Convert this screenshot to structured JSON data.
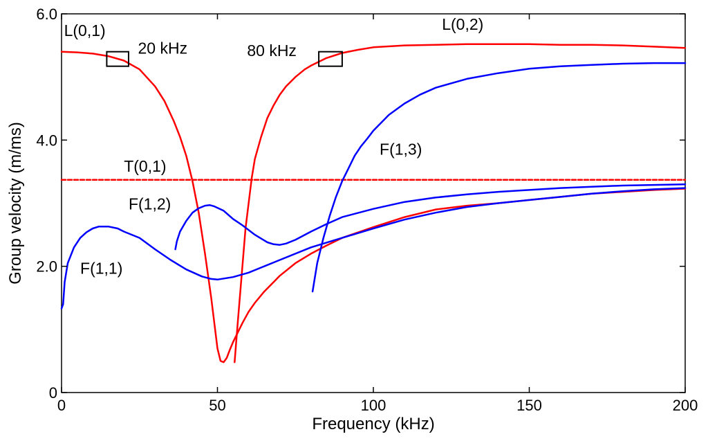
{
  "chart_data": {
    "type": "line",
    "title": "",
    "xlabel": "Frequency (kHz)",
    "ylabel": "Group velocity (m/ms)",
    "xlim": [
      0,
      200
    ],
    "ylim": [
      0,
      6
    ],
    "x_ticks": [
      0,
      50,
      100,
      150,
      200
    ],
    "y_ticks": [
      0,
      2,
      4,
      6
    ],
    "x_tick_labels": [
      "0",
      "50",
      "100",
      "150",
      "200"
    ],
    "y_tick_labels": [
      "0",
      "2.0",
      "4.0",
      "6.0"
    ],
    "grid": false,
    "series": [
      {
        "name": "L(0,1)",
        "color": "#ff0000",
        "dash": "solid",
        "x": [
          0,
          5,
          10,
          15,
          20,
          25,
          30,
          33,
          36,
          38,
          40,
          42,
          44,
          46,
          48,
          50,
          51,
          52,
          53,
          54,
          55,
          56,
          58,
          60,
          62,
          65,
          68,
          70,
          75,
          80,
          85,
          90,
          100,
          110,
          120,
          130,
          140,
          150,
          160,
          170,
          180,
          190,
          200
        ],
        "y": [
          5.4,
          5.39,
          5.37,
          5.33,
          5.26,
          5.12,
          4.85,
          4.62,
          4.3,
          4.05,
          3.75,
          3.35,
          2.85,
          2.2,
          1.5,
          0.7,
          0.5,
          0.48,
          0.55,
          0.68,
          0.8,
          0.9,
          1.1,
          1.28,
          1.42,
          1.6,
          1.75,
          1.85,
          2.05,
          2.2,
          2.33,
          2.45,
          2.62,
          2.78,
          2.9,
          2.96,
          3.0,
          3.05,
          3.1,
          3.15,
          3.18,
          3.21,
          3.23
        ]
      },
      {
        "name": "L(0,2)",
        "color": "#ff0000",
        "dash": "solid",
        "x": [
          55.5,
          56.5,
          58,
          59,
          60,
          61,
          62,
          64,
          66,
          68,
          70,
          72,
          75,
          78,
          80,
          85,
          90,
          95,
          100,
          110,
          120,
          130,
          140,
          150,
          160,
          170,
          180,
          190,
          200
        ],
        "y": [
          0.48,
          1.1,
          2.0,
          2.6,
          3.0,
          3.4,
          3.7,
          4.05,
          4.35,
          4.55,
          4.72,
          4.85,
          5.0,
          5.12,
          5.18,
          5.3,
          5.38,
          5.43,
          5.47,
          5.5,
          5.51,
          5.52,
          5.52,
          5.52,
          5.51,
          5.51,
          5.5,
          5.48,
          5.46
        ]
      },
      {
        "name": "T(0,1)",
        "color": "#ff0000",
        "dash": "dashed",
        "x": [
          0,
          200
        ],
        "y": [
          3.37,
          3.37
        ]
      },
      {
        "name": "F(1,1)",
        "color": "#0000ff",
        "dash": "solid",
        "x": [
          0,
          0.5,
          1,
          2,
          4,
          6,
          8,
          10,
          12,
          15,
          18,
          20,
          25,
          30,
          35,
          40,
          45,
          48,
          50,
          55,
          60,
          70,
          80,
          90,
          100,
          110,
          120,
          130,
          140,
          150,
          160,
          170,
          180,
          190,
          200
        ],
        "y": [
          1.33,
          1.4,
          1.75,
          2.05,
          2.3,
          2.45,
          2.54,
          2.6,
          2.63,
          2.63,
          2.6,
          2.55,
          2.45,
          2.27,
          2.1,
          1.95,
          1.84,
          1.8,
          1.79,
          1.83,
          1.9,
          2.1,
          2.3,
          2.45,
          2.6,
          2.74,
          2.85,
          2.94,
          3.0,
          3.05,
          3.1,
          3.15,
          3.19,
          3.22,
          3.24
        ]
      },
      {
        "name": "F(1,2)",
        "color": "#0000ff",
        "dash": "solid",
        "x": [
          36.5,
          37,
          38,
          40,
          42,
          44,
          46,
          47.5,
          49,
          52,
          55,
          58,
          62,
          66,
          68,
          70,
          72,
          75,
          80,
          85,
          90,
          100,
          110,
          120,
          130,
          140,
          150,
          160,
          170,
          180,
          190,
          200
        ],
        "y": [
          2.27,
          2.4,
          2.55,
          2.72,
          2.85,
          2.92,
          2.96,
          2.97,
          2.95,
          2.88,
          2.75,
          2.65,
          2.5,
          2.38,
          2.35,
          2.34,
          2.36,
          2.42,
          2.55,
          2.67,
          2.78,
          2.91,
          3.02,
          3.09,
          3.14,
          3.18,
          3.21,
          3.24,
          3.26,
          3.28,
          3.29,
          3.3
        ]
      },
      {
        "name": "F(1,3)",
        "color": "#0000ff",
        "dash": "solid",
        "x": [
          80.5,
          81,
          82,
          84,
          86,
          88,
          90,
          92,
          94,
          96,
          98,
          100,
          105,
          110,
          115,
          120,
          130,
          140,
          150,
          160,
          170,
          180,
          190,
          200
        ],
        "y": [
          1.6,
          1.75,
          2.05,
          2.45,
          2.8,
          3.1,
          3.35,
          3.55,
          3.75,
          3.9,
          4.02,
          4.15,
          4.4,
          4.58,
          4.72,
          4.83,
          4.97,
          5.06,
          5.13,
          5.17,
          5.19,
          5.21,
          5.22,
          5.22
        ]
      }
    ],
    "annotations": [
      {
        "text": "L(0,1)",
        "x": 0.8,
        "y": 5.65
      },
      {
        "text": "L(0,2)",
        "x": 122,
        "y": 5.75
      },
      {
        "text": "20 kHz",
        "x": 24.5,
        "y": 5.37
      },
      {
        "text": "80 kHz",
        "x": 59.5,
        "y": 5.33
      },
      {
        "text": "T(0,1)",
        "x": 20,
        "y": 3.5
      },
      {
        "text": "F(1,3)",
        "x": 102,
        "y": 3.77
      },
      {
        "text": "F(1,2)",
        "x": 21.5,
        "y": 2.9
      },
      {
        "text": "F(1,1)",
        "x": 6,
        "y": 1.88
      }
    ],
    "markers": [
      {
        "label": "20 kHz",
        "shape": "rectangle",
        "x": [
          14.5,
          21.5
        ],
        "y": [
          5.17,
          5.4
        ]
      },
      {
        "label": "80 kHz",
        "shape": "rectangle",
        "x": [
          82.5,
          90
        ],
        "y": [
          5.17,
          5.4
        ]
      }
    ]
  }
}
